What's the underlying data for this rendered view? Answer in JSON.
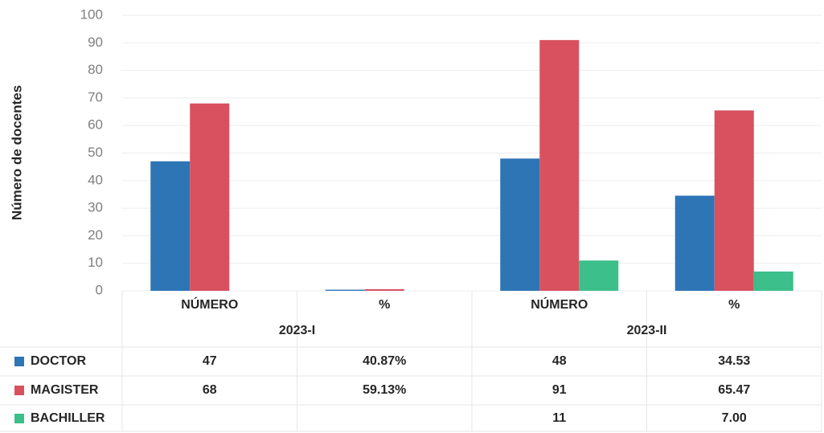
{
  "chart_data": {
    "type": "bar",
    "y_label": "Número de docentes",
    "categories": [
      "NÚMERO",
      "%",
      "NÚMERO",
      "%"
    ],
    "groups": [
      "2023-I",
      "2023-II"
    ],
    "series": [
      {
        "name": "DOCTOR",
        "color": "#2e75b6",
        "values": [
          47,
          0.4087,
          48,
          34.53
        ],
        "value_labels": [
          "47",
          "40.87%",
          "48",
          "34.53"
        ]
      },
      {
        "name": "MAGISTER",
        "color": "#d9515f",
        "values": [
          68,
          0.5913,
          91,
          65.47
        ],
        "value_labels": [
          "68",
          "59.13%",
          "91",
          "65.47"
        ]
      },
      {
        "name": "BACHILLER",
        "color": "#3cbf8a",
        "values": [
          null,
          null,
          11,
          7
        ],
        "value_labels": [
          null,
          null,
          "11",
          "7.00"
        ]
      }
    ],
    "ylim": [
      0,
      100
    ],
    "yticks": [
      0,
      10,
      20,
      30,
      40,
      50,
      60,
      70,
      80,
      90,
      100
    ],
    "grid": true
  }
}
